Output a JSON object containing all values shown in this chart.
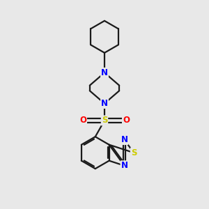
{
  "bg_color": "#e8e8e8",
  "line_color": "#1a1a1a",
  "N_color": "#0000ff",
  "S_color": "#cccc00",
  "O_color": "#ff0000",
  "line_width": 1.6,
  "figsize": [
    3.0,
    3.0
  ],
  "dpi": 100,
  "xlim": [
    0,
    10
  ],
  "ylim": [
    0,
    10
  ]
}
